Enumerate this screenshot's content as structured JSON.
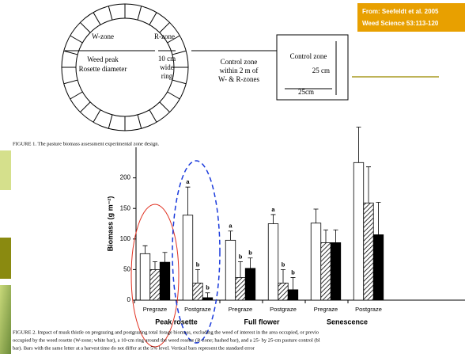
{
  "source": {
    "line1": "From: Seefeldt et al. 2005",
    "line2": "Weed Science 53:113-120"
  },
  "figure1": {
    "w_zone": "W-zone",
    "r_zone": "R-zone",
    "weed_peak": "Weed peak",
    "rosette_diameter": "Rosette diameter",
    "ring1": "10 cm",
    "ring2": "wide",
    "ring3": "ring",
    "control1": "Control zone",
    "control2": "within 2 m of",
    "control3": "W- & R-zones",
    "box_title": "Control zone",
    "side_v": "25 cm",
    "side_h": "25cm",
    "caption": "FIGURE 1. The pasture biomass assessment experimental zone design."
  },
  "chart_data": {
    "type": "bar",
    "y_label": "Biomass (g m⁻²)",
    "categories": [
      "Pregraze",
      "Postgraze",
      "Pregraze",
      "Postgraze",
      "Pregraze",
      "Postgraze"
    ],
    "groups": [
      "Peak rosette",
      "Full flower",
      "Senescence"
    ],
    "ylim": [
      0,
      250
    ],
    "yticks": [
      0,
      50,
      100,
      150,
      200
    ],
    "series": [
      {
        "color": "#ffffff",
        "values": [
          76,
          139,
          98,
          125,
          126,
          225
        ],
        "errors": [
          13,
          46,
          15,
          15,
          23,
          58
        ],
        "letters": [
          null,
          "a",
          "a",
          "a",
          null,
          null
        ]
      },
      {
        "color": "hatch",
        "values": [
          50,
          28,
          37,
          28,
          94,
          159
        ],
        "errors": [
          13,
          22,
          26,
          22,
          21,
          59
        ],
        "letters": [
          null,
          "b",
          "b",
          "b",
          null,
          null
        ]
      },
      {
        "color": "#000000",
        "values": [
          62,
          4,
          52,
          17,
          94,
          107
        ],
        "errors": [
          16,
          8,
          17,
          20,
          21,
          53
        ],
        "letters": [
          null,
          "b",
          "b",
          "b",
          null,
          null
        ]
      }
    ]
  },
  "figure2": {
    "caption1": "FIGURE 2. Impact of musk thistle on pregrazing and postgrazing total forage biomass, excluding the weed of interest in the area occupied, or previo",
    "caption2": "occupied by the weed rosette (W-zone; white bar), a 10-cm ring around the weed rosette (R-zone; hashed bar), and a 25- by 25-cm pasture control (bl",
    "caption3": "bar). Bars with the same letter at a harvest time do not differ at the 5% level. Vertical bars represent the standard error"
  }
}
